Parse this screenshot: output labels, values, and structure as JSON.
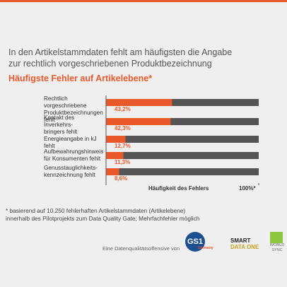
{
  "chart_data": {
    "type": "bar",
    "title": "In den Artikelstammdaten fehlt am häufigsten die Angabe\nzur rechtlich vorgeschriebenen Produktbezeichnung",
    "subtitle": "Häufigste Fehler auf Artikelebene*",
    "categories": [
      "Rechtlich vorgeschriebene\nProduktbezeichnungen fehlt",
      "Kontakt des Inverkehrs-\nbringers fehlt",
      "Energieangabe in kJ fehlt",
      "Aufbewahrungshinweis\nfür Konsumenten fehlt",
      "Genusstauglichkeits-\nkennzeichnung fehlt"
    ],
    "values": [
      43.2,
      42.3,
      12.7,
      11.3,
      8.6
    ],
    "value_labels": [
      "43,2%",
      "42,3%",
      "12,7%",
      "11,3%",
      "8,6%"
    ],
    "color": "#e8582a",
    "xlim": [
      0,
      100
    ],
    "xticks": [
      {
        "value": 100,
        "label": "100%*"
      }
    ],
    "xlabel": "Häufigkeit des Fehlers",
    "footnote": "* basierend auf 10.250 fehlerhaften Artikelstammdaten (Artikelebene)\n   innerhalb des Pilotprojekts zum Data Quality Gate; Mehrfachfehler möglich",
    "source": "Eine Datenqualitätsoffensive von",
    "logos": [
      "GS1",
      "Germany",
      "SMART",
      "DATA ONE",
      "WORLD\nSYNC"
    ]
  }
}
